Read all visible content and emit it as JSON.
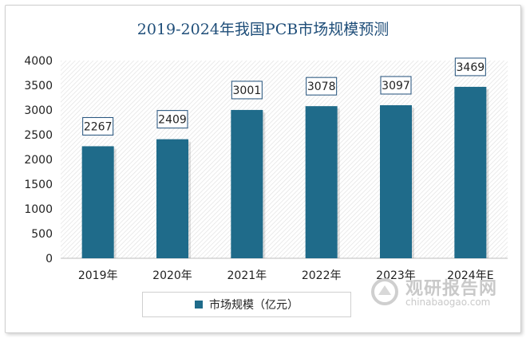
{
  "chart_data": {
    "type": "bar",
    "title": "2019-2024年我国PCB市场规模预测",
    "categories": [
      "2019年",
      "2020年",
      "2021年",
      "2022年",
      "2023年",
      "2024年E"
    ],
    "series": [
      {
        "name": "市场规模（亿元）",
        "values": [
          2267,
          2409,
          3001,
          3078,
          3097,
          3469
        ]
      }
    ],
    "data_labels": [
      "2267",
      "2409",
      "3001",
      "3078",
      "3097",
      "3469"
    ],
    "yticks": [
      "0",
      "500",
      "1000",
      "1500",
      "2000",
      "2500",
      "3000",
      "3500",
      "4000"
    ],
    "ylim": [
      0,
      4000
    ],
    "legend_position": "bottom",
    "bar_color": "#1f6b8a",
    "background": "hatched"
  },
  "watermark": {
    "cn": "观研报告网",
    "en": "chinabaogao.com"
  }
}
